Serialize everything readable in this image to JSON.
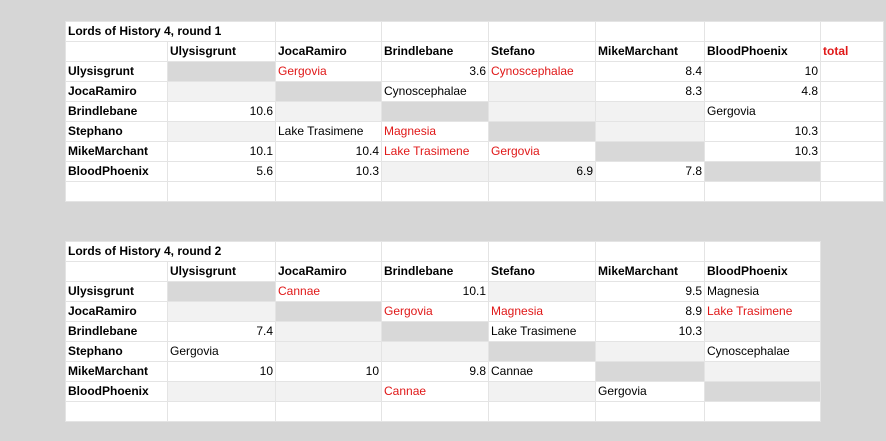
{
  "round1": {
    "title": "Lords of History 4, round 1",
    "headers": [
      "",
      "Ulysisgrunt",
      "JocaRamiro",
      "Brindlebane",
      "Stefano",
      "MikeMarchant",
      "BloodPhoenix",
      "total"
    ],
    "rows": [
      [
        "Ulysisgrunt",
        "",
        "Gergovia",
        "3.6",
        "Cynoscephalae",
        "8.4",
        "10",
        ""
      ],
      [
        "JocaRamiro",
        "",
        "",
        "Cynoscephalae",
        "",
        "8.3",
        "4.8",
        ""
      ],
      [
        "Brindlebane",
        "10.6",
        "",
        "",
        "",
        "",
        "Gergovia",
        ""
      ],
      [
        "Stephano",
        "",
        "Lake Trasimene",
        "Magnesia",
        "",
        "",
        "10.3",
        ""
      ],
      [
        "MikeMarchant",
        "10.1",
        "10.4",
        "Lake Trasimene",
        "Gergovia",
        "",
        "10.3",
        ""
      ],
      [
        "BloodPhoenix",
        "5.6",
        "10.3",
        "",
        "6.9",
        "7.8",
        "",
        ""
      ],
      [
        "",
        "",
        "",
        "",
        "",
        "",
        "",
        ""
      ]
    ]
  },
  "round2": {
    "title": "Lords of History 4, round 2",
    "headers": [
      "",
      "Ulysisgrunt",
      "JocaRamiro",
      "Brindlebane",
      "Stefano",
      "MikeMarchant",
      "BloodPhoenix"
    ],
    "rows": [
      [
        "Ulysisgrunt",
        "",
        "Cannae",
        "10.1",
        "",
        "9.5",
        "Magnesia"
      ],
      [
        "JocaRamiro",
        "",
        "",
        "Gergovia",
        "Magnesia",
        "8.9",
        "Lake Trasimene"
      ],
      [
        "Brindlebane",
        "7.4",
        "",
        "",
        "Lake Trasimene",
        "10.3",
        ""
      ],
      [
        "Stephano",
        "Gergovia",
        "",
        "",
        "",
        "",
        "Cynoscephalae"
      ],
      [
        "MikeMarchant",
        "10",
        "10",
        "9.8",
        "Cannae",
        "",
        ""
      ],
      [
        "BloodPhoenix",
        "",
        "",
        "Cannae",
        "",
        "Gergovia",
        ""
      ],
      [
        "",
        "",
        "",
        "",
        "",
        "",
        ""
      ]
    ]
  },
  "colors": {
    "background": "#d6d6d6",
    "highlight_text": "#e01818",
    "diagonal_fill": "#d8d8d8",
    "band_fill": "#f2f2f2"
  }
}
